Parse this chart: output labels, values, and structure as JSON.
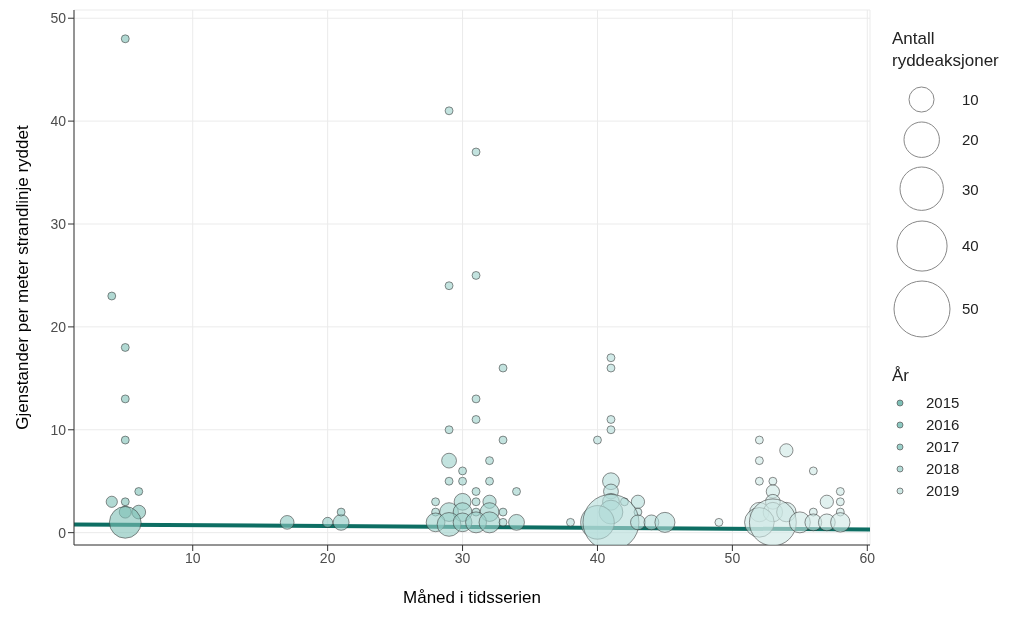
{
  "chart_data": {
    "type": "bubble",
    "xlabel": "Måned i tidsserien",
    "ylabel": "Gjenstander per meter strandlinje ryddet",
    "legend_title": [
      "Antall ryddeaksjoner",
      "År"
    ],
    "xlim": [
      1.2,
      60.2
    ],
    "xticks": [
      10,
      20,
      30,
      40,
      50,
      60
    ],
    "ylim": [
      -1.2,
      50.8
    ],
    "yticks": [
      0,
      10,
      20,
      30,
      40,
      50
    ],
    "grid": true,
    "legend": "right",
    "marker": "circle",
    "size_legend": [
      10,
      20,
      30,
      40,
      50
    ],
    "series": [
      {
        "name": "2015",
        "color": "#7dbfb6",
        "x": [
          4,
          5,
          5,
          5,
          5,
          6,
          4,
          5,
          5,
          6,
          5
        ],
        "values": [
          23,
          48,
          18,
          13,
          9,
          4,
          3,
          3,
          2,
          2,
          1
        ],
        "sizes": [
          1,
          1,
          1,
          1,
          1,
          1,
          2,
          1,
          2.3,
          3,
          16
        ]
      },
      {
        "name": "2016",
        "color": "#8cc8c1",
        "x": [
          17,
          20,
          21,
          21
        ],
        "values": [
          1,
          1,
          1,
          2
        ],
        "sizes": [
          3,
          1.6,
          4,
          1
        ]
      },
      {
        "name": "2017",
        "color": "#9bd0ca",
        "x": [
          29,
          31,
          31,
          29,
          33,
          31,
          31,
          29,
          33,
          29,
          32,
          30,
          29,
          30,
          32,
          31,
          34,
          28,
          30,
          31,
          32,
          28,
          29,
          30,
          31,
          33,
          32,
          28,
          29,
          30,
          31,
          32,
          33,
          34
        ],
        "values": [
          41,
          37,
          25,
          24,
          16,
          13,
          11,
          10,
          9,
          7,
          7,
          6,
          5,
          5,
          5,
          4,
          4,
          3,
          3,
          3,
          3,
          2,
          2,
          2,
          2,
          2,
          2,
          1,
          0.8,
          1,
          1,
          1,
          1,
          1
        ],
        "sizes": [
          1,
          1,
          1,
          1,
          1,
          1,
          1,
          1,
          1,
          3.5,
          1,
          1,
          1,
          1,
          1,
          1,
          1,
          1,
          4.5,
          1,
          2.8,
          1,
          5.6,
          5.6,
          1,
          1,
          5.6,
          5.6,
          9,
          5.6,
          7,
          7,
          1,
          4
        ]
      },
      {
        "name": "2018",
        "color": "#b3dcd8",
        "x": [
          41,
          41,
          41,
          41,
          40,
          41,
          41,
          41,
          42,
          43,
          43,
          41,
          38,
          40,
          41,
          43,
          44,
          45
        ],
        "values": [
          17,
          16,
          11,
          10,
          9,
          5,
          4,
          3,
          3,
          3,
          2,
          2,
          1,
          1,
          1,
          1,
          1,
          1
        ],
        "sizes": [
          1,
          1,
          1,
          1,
          1,
          4.5,
          3.5,
          4.5,
          1,
          2.8,
          1,
          9,
          1,
          18,
          50,
          3.5,
          3.5,
          6.4
        ]
      },
      {
        "name": "2019",
        "color": "#cde8e5",
        "x": [
          52,
          54,
          52,
          56,
          52,
          53,
          53,
          58,
          58,
          57,
          53,
          56,
          58,
          52,
          53,
          54,
          49,
          52,
          53,
          55,
          56,
          57,
          58
        ],
        "values": [
          9,
          8,
          7,
          6,
          5,
          5,
          4,
          4,
          3,
          3,
          3,
          2,
          2,
          2,
          2,
          2,
          1,
          1,
          1,
          1,
          1,
          1,
          1
        ],
        "sizes": [
          1,
          2.8,
          1,
          1,
          1,
          1,
          2.8,
          1,
          1,
          2.8,
          3.5,
          1,
          1,
          6,
          6,
          6,
          1,
          14,
          35,
          7,
          4.5,
          4.5,
          6
        ]
      },
      {
        "type": "line",
        "color": "#0d6e63",
        "marker": "none",
        "x": [
          1.2,
          60.2
        ],
        "values": [
          0.8,
          0.3
        ]
      }
    ]
  }
}
